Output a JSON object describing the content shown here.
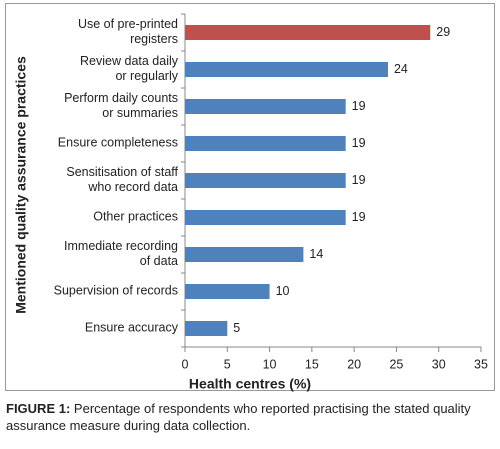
{
  "chart_data": {
    "type": "barh",
    "categories": [
      "Use of pre-printed\nregisters",
      "Review data daily\nor regularly",
      "Perform daily counts\nor summaries",
      "Ensure completeness",
      "Sensitisation of staff\nwho record data",
      "Other practices",
      "Immediate recording\nof data",
      "Supervision of records",
      "Ensure accuracy"
    ],
    "values": [
      29,
      24,
      19,
      19,
      19,
      19,
      14,
      10,
      5
    ],
    "colors": [
      "#c0504d",
      "#4f81bd",
      "#4f81bd",
      "#4f81bd",
      "#4f81bd",
      "#4f81bd",
      "#4f81bd",
      "#4f81bd",
      "#4f81bd"
    ],
    "xlim": [
      0,
      35
    ],
    "xticks": [
      0,
      5,
      10,
      15,
      20,
      25,
      30,
      35
    ],
    "xlabel": "Health centres (%)",
    "ylabel": "Mentioned quality assurance practices",
    "grid": false
  },
  "caption": {
    "label": "FIGURE 1:",
    "text": "Percentage of respondents who reported practising the stated quality assurance measure during data collection."
  }
}
